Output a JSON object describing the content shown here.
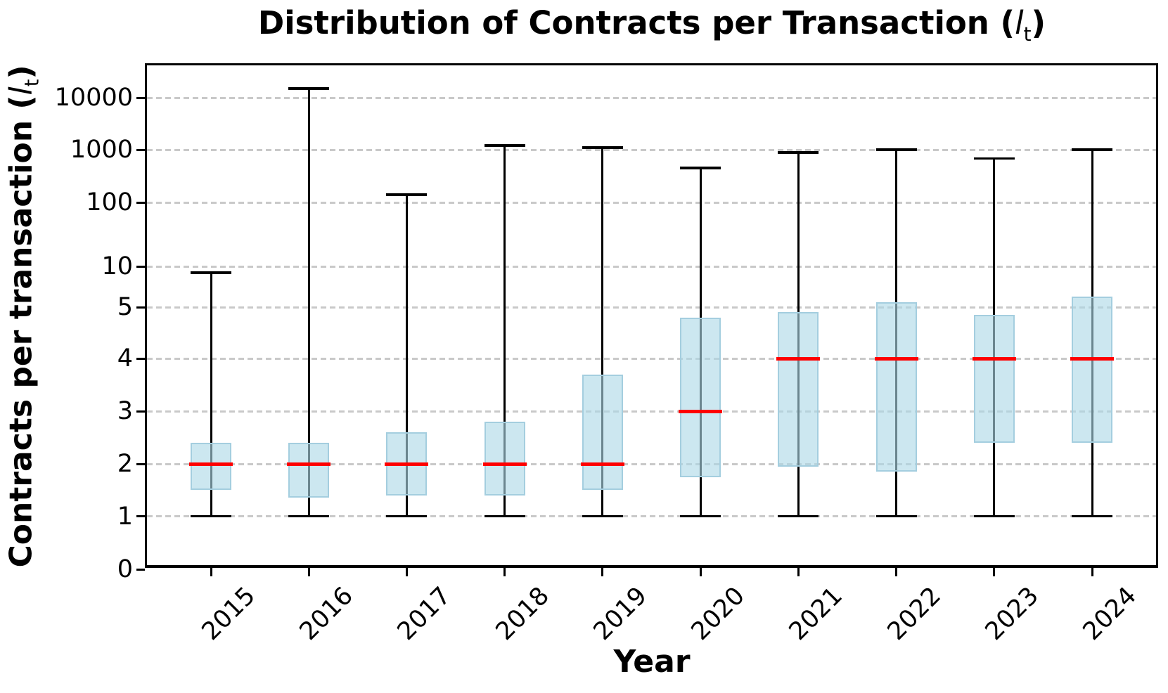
{
  "title": {
    "prefix": "Distribution of Contracts per Transaction (",
    "var_symbol": "l",
    "var_subscript": "t",
    "suffix": ")"
  },
  "axes": {
    "x": {
      "label": "Year",
      "ticks": [
        "2015",
        "2016",
        "2017",
        "2018",
        "2019",
        "2020",
        "2021",
        "2022",
        "2023",
        "2024"
      ]
    },
    "y": {
      "label_prefix": "Contracts per transaction (",
      "var_symbol": "l",
      "var_subscript": "t",
      "label_suffix": ")",
      "ticks": [
        {
          "label": "0",
          "value": 0
        },
        {
          "label": "1",
          "value": 1
        },
        {
          "label": "2",
          "value": 2
        },
        {
          "label": "3",
          "value": 3
        },
        {
          "label": "4",
          "value": 4
        },
        {
          "label": "5",
          "value": 5
        },
        {
          "label": "10",
          "value": 10
        },
        {
          "label": "100",
          "value": 100
        },
        {
          "label": "1000",
          "value": 1000
        },
        {
          "label": "10000",
          "value": 10000
        }
      ]
    }
  },
  "chart_data": {
    "type": "boxplot",
    "title": "Distribution of Contracts per Transaction (l_t)",
    "xlabel": "Year",
    "ylabel": "Contracts per transaction (l_t)",
    "yscale": "linear from 0 to 5, logarithmic above 5",
    "grid": "horizontal dashed gridlines at every labeled tick",
    "legend": "none",
    "categories": [
      "2015",
      "2016",
      "2017",
      "2018",
      "2019",
      "2020",
      "2021",
      "2022",
      "2023",
      "2024"
    ],
    "series": [
      {
        "year": "2015",
        "whisker_low": 1,
        "q1": 1.5,
        "median": 2,
        "q3": 2.4,
        "whisker_high": 9
      },
      {
        "year": "2016",
        "whisker_low": 1,
        "q1": 1.35,
        "median": 2,
        "q3": 2.4,
        "whisker_high": 15000
      },
      {
        "year": "2017",
        "whisker_low": 1,
        "q1": 1.4,
        "median": 2,
        "q3": 2.6,
        "whisker_high": 140
      },
      {
        "year": "2018",
        "whisker_low": 1,
        "q1": 1.4,
        "median": 2,
        "q3": 2.8,
        "whisker_high": 1200
      },
      {
        "year": "2019",
        "whisker_low": 1,
        "q1": 1.5,
        "median": 2,
        "q3": 3.7,
        "whisker_high": 1100
      },
      {
        "year": "2020",
        "whisker_low": 1,
        "q1": 1.75,
        "median": 3,
        "q3": 4.8,
        "whisker_high": 450
      },
      {
        "year": "2021",
        "whisker_low": 1,
        "q1": 1.95,
        "median": 4,
        "q3": 4.9,
        "whisker_high": 880
      },
      {
        "year": "2022",
        "whisker_low": 1,
        "q1": 1.85,
        "median": 4,
        "q3": 5.45,
        "whisker_high": 1000
      },
      {
        "year": "2023",
        "whisker_low": 1,
        "q1": 2.4,
        "median": 4,
        "q3": 4.85,
        "whisker_high": 680
      },
      {
        "year": "2024",
        "whisker_low": 1,
        "q1": 2.4,
        "median": 4,
        "q3": 6.0,
        "whisker_high": 1000
      }
    ],
    "colors": {
      "box_fill": "#ADD8E6",
      "box_fill_alpha": 0.62,
      "box_edge": "#A4CEDF",
      "median": "#FF0000",
      "whisker": "#000000",
      "grid": "#C9C9C9"
    }
  }
}
